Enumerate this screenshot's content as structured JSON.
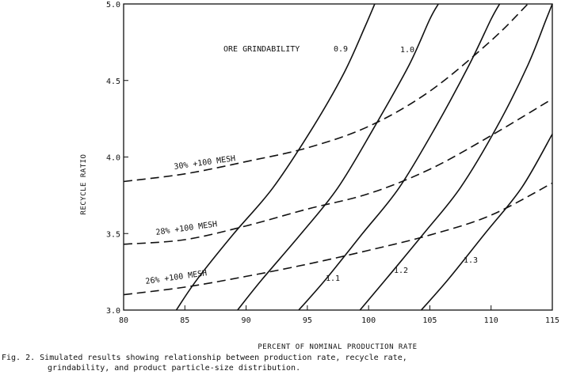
{
  "chart_data": {
    "type": "line",
    "title": "",
    "xlabel": "PERCENT OF NOMINAL PRODUCTION RATE",
    "ylabel": "RECYCLE RATIO",
    "xlim": [
      80,
      115
    ],
    "ylim": [
      3.0,
      5.0
    ],
    "x_ticks": [
      80,
      85,
      90,
      95,
      100,
      105,
      110,
      115
    ],
    "x_tick_labels": [
      "80",
      "85",
      "90",
      "95",
      "100",
      "105",
      "110",
      "115"
    ],
    "y_ticks": [
      3.0,
      3.5,
      4.0,
      4.5,
      5.0
    ],
    "y_tick_labels": [
      "3.0",
      "3.5",
      "4.0",
      "4.5",
      "5.0"
    ],
    "grid": false,
    "legend": "none",
    "annotation": "ORE GRINDABILITY",
    "grindability_curves": [
      {
        "label": "0.9",
        "points": [
          [
            84.3,
            3.0
          ],
          [
            86.0,
            3.2
          ],
          [
            89.0,
            3.5
          ],
          [
            92.2,
            3.8
          ],
          [
            95.5,
            4.2
          ],
          [
            98.0,
            4.55
          ],
          [
            99.7,
            4.85
          ],
          [
            100.5,
            5.0
          ]
        ]
      },
      {
        "label": "1.0",
        "points": [
          [
            89.3,
            3.0
          ],
          [
            91.3,
            3.2
          ],
          [
            94.5,
            3.5
          ],
          [
            97.5,
            3.8
          ],
          [
            100.5,
            4.2
          ],
          [
            103.3,
            4.6
          ],
          [
            105.0,
            4.9
          ],
          [
            105.7,
            5.0
          ]
        ]
      },
      {
        "label": "1.1",
        "points": [
          [
            94.3,
            3.0
          ],
          [
            96.5,
            3.2
          ],
          [
            99.5,
            3.5
          ],
          [
            102.5,
            3.8
          ],
          [
            105.5,
            4.2
          ],
          [
            108.2,
            4.6
          ],
          [
            110.0,
            4.9
          ],
          [
            110.7,
            5.0
          ]
        ]
      },
      {
        "label": "1.2",
        "points": [
          [
            99.3,
            3.0
          ],
          [
            101.4,
            3.2
          ],
          [
            104.5,
            3.5
          ],
          [
            107.5,
            3.8
          ],
          [
            110.5,
            4.2
          ],
          [
            113.0,
            4.6
          ],
          [
            114.5,
            4.9
          ],
          [
            115.0,
            5.0
          ]
        ]
      },
      {
        "label": "1.3",
        "points": [
          [
            104.3,
            3.0
          ],
          [
            106.5,
            3.2
          ],
          [
            109.5,
            3.5
          ],
          [
            112.5,
            3.8
          ],
          [
            115.0,
            4.15
          ]
        ]
      }
    ],
    "mesh_curves": [
      {
        "label": "30% +100 MESH",
        "points": [
          [
            80,
            3.84
          ],
          [
            85,
            3.89
          ],
          [
            90,
            3.97
          ],
          [
            95,
            4.06
          ],
          [
            100,
            4.2
          ],
          [
            105,
            4.43
          ],
          [
            110,
            4.76
          ],
          [
            113,
            5.0
          ]
        ]
      },
      {
        "label": "28% +100 MESH",
        "points": [
          [
            80,
            3.43
          ],
          [
            85,
            3.46
          ],
          [
            90,
            3.55
          ],
          [
            95,
            3.66
          ],
          [
            100,
            3.76
          ],
          [
            105,
            3.92
          ],
          [
            110,
            4.14
          ],
          [
            115,
            4.38
          ]
        ]
      },
      {
        "label": "26% +100 MESH",
        "points": [
          [
            80,
            3.1
          ],
          [
            85,
            3.15
          ],
          [
            90,
            3.22
          ],
          [
            95,
            3.3
          ],
          [
            100,
            3.39
          ],
          [
            105,
            3.49
          ],
          [
            110,
            3.62
          ],
          [
            115,
            3.83
          ]
        ]
      }
    ]
  },
  "caption": {
    "line1": "Fig. 2. Simulated results showing relationship between production rate, recycle rate,",
    "line2": "grindability, and product particle-size distribution."
  }
}
